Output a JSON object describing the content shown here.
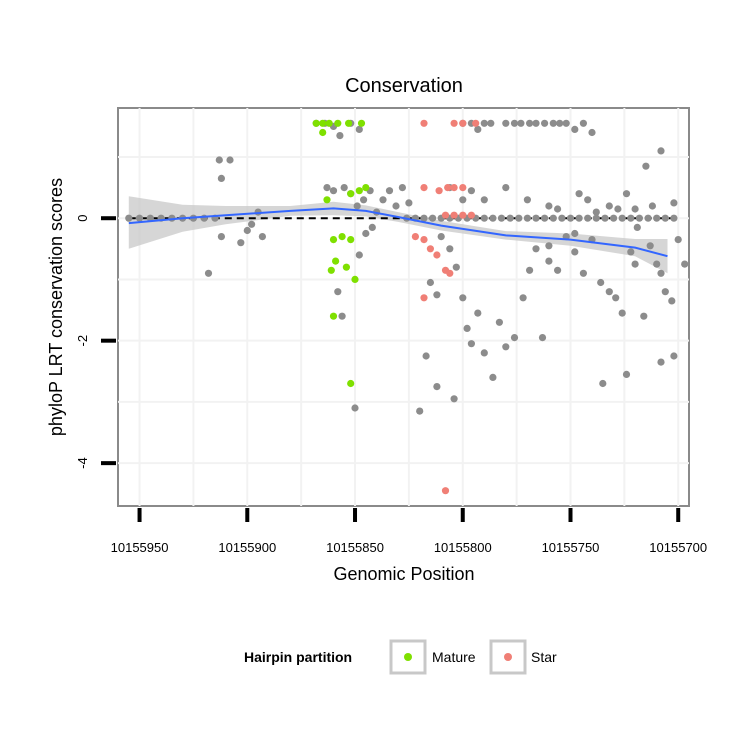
{
  "chart_data": {
    "type": "scatter",
    "title": "Conservation",
    "xlabel": "Genomic Position",
    "ylabel": "phyloP LRT conservation scores",
    "x_reversed": true,
    "xlim": [
      10155960,
      10155695
    ],
    "ylim": [
      -4.7,
      1.8
    ],
    "x_ticks": [
      10155950,
      10155900,
      10155850,
      10155800,
      10155750,
      10155700
    ],
    "x_tick_labels": [
      "10155950",
      "10155900",
      "10155850",
      "10155800",
      "10155750",
      "10155700"
    ],
    "y_ticks": [
      0,
      -2,
      -4
    ],
    "y_tick_labels": [
      "0",
      "-2",
      "-4"
    ],
    "reference_line": {
      "y": 0,
      "style": "dashed"
    },
    "grid": true,
    "legend": {
      "title": "Hairpin partition",
      "position": "bottom",
      "entries": [
        {
          "label": "Mature",
          "color": "#7fe000"
        },
        {
          "label": "Star",
          "color": "#f07f76"
        }
      ]
    },
    "colors": {
      "Other": "#8c8c8c",
      "Mature": "#7fe000",
      "Star": "#f07f76",
      "smooth": "#3366ff",
      "ribbon": "#c8c8c8"
    },
    "series": [
      {
        "name": "",
        "color_key": "Other",
        "points": [
          [
            10155955,
            0
          ],
          [
            10155950,
            0
          ],
          [
            10155945,
            0
          ],
          [
            10155940,
            0
          ],
          [
            10155935,
            0
          ],
          [
            10155930,
            0
          ],
          [
            10155925,
            0
          ],
          [
            10155920,
            0
          ],
          [
            10155915,
            0
          ],
          [
            10155913,
            0.95
          ],
          [
            10155908,
            0.95
          ],
          [
            10155912,
            0.65
          ],
          [
            10155918,
            -0.9
          ],
          [
            10155912,
            -0.3
          ],
          [
            10155903,
            -0.4
          ],
          [
            10155900,
            -0.2
          ],
          [
            10155898,
            -0.1
          ],
          [
            10155895,
            0.1
          ],
          [
            10155893,
            -0.3
          ],
          [
            10155868,
            1.55
          ],
          [
            10155864,
            1.55
          ],
          [
            10155860,
            1.5
          ],
          [
            10155857,
            1.35
          ],
          [
            10155852,
            1.55
          ],
          [
            10155848,
            1.45
          ],
          [
            10155863,
            0.5
          ],
          [
            10155860,
            0.45
          ],
          [
            10155855,
            0.5
          ],
          [
            10155852,
            0.4
          ],
          [
            10155849,
            0.2
          ],
          [
            10155846,
            0.3
          ],
          [
            10155843,
            0.45
          ],
          [
            10155840,
            0.1
          ],
          [
            10155837,
            0.3
          ],
          [
            10155834,
            0.45
          ],
          [
            10155831,
            0.2
          ],
          [
            10155828,
            0.5
          ],
          [
            10155825,
            0.25
          ],
          [
            10155858,
            -1.2
          ],
          [
            10155856,
            -1.6
          ],
          [
            10155850,
            -3.1
          ],
          [
            10155848,
            -0.6
          ],
          [
            10155845,
            -0.25
          ],
          [
            10155842,
            -0.15
          ],
          [
            10155826,
            0
          ],
          [
            10155822,
            0
          ],
          [
            10155818,
            0
          ],
          [
            10155814,
            0
          ],
          [
            10155810,
            0
          ],
          [
            10155806,
            0
          ],
          [
            10155802,
            0
          ],
          [
            10155798,
            0
          ],
          [
            10155794,
            0
          ],
          [
            10155790,
            0
          ],
          [
            10155786,
            0
          ],
          [
            10155782,
            0
          ],
          [
            10155778,
            0
          ],
          [
            10155774,
            0
          ],
          [
            10155770,
            0
          ],
          [
            10155766,
            0
          ],
          [
            10155762,
            0
          ],
          [
            10155758,
            0
          ],
          [
            10155754,
            0
          ],
          [
            10155750,
            0
          ],
          [
            10155746,
            0
          ],
          [
            10155742,
            0
          ],
          [
            10155738,
            0
          ],
          [
            10155734,
            0
          ],
          [
            10155730,
            0
          ],
          [
            10155726,
            0
          ],
          [
            10155722,
            0
          ],
          [
            10155718,
            0
          ],
          [
            10155714,
            0
          ],
          [
            10155710,
            0
          ],
          [
            10155706,
            0
          ],
          [
            10155702,
            0
          ],
          [
            10155800,
            1.55
          ],
          [
            10155796,
            1.55
          ],
          [
            10155793,
            1.45
          ],
          [
            10155790,
            1.55
          ],
          [
            10155787,
            1.55
          ],
          [
            10155780,
            1.55
          ],
          [
            10155776,
            1.55
          ],
          [
            10155773,
            1.55
          ],
          [
            10155769,
            1.55
          ],
          [
            10155766,
            1.55
          ],
          [
            10155762,
            1.55
          ],
          [
            10155758,
            1.55
          ],
          [
            10155755,
            1.55
          ],
          [
            10155752,
            1.55
          ],
          [
            10155748,
            1.45
          ],
          [
            10155744,
            1.55
          ],
          [
            10155740,
            1.4
          ],
          [
            10155806,
            0.5
          ],
          [
            10155800,
            0.3
          ],
          [
            10155796,
            0.45
          ],
          [
            10155790,
            0.3
          ],
          [
            10155780,
            0.5
          ],
          [
            10155770,
            0.3
          ],
          [
            10155760,
            0.2
          ],
          [
            10155756,
            0.15
          ],
          [
            10155746,
            0.4
          ],
          [
            10155742,
            0.3
          ],
          [
            10155738,
            0.1
          ],
          [
            10155732,
            0.2
          ],
          [
            10155728,
            0.15
          ],
          [
            10155724,
            0.4
          ],
          [
            10155720,
            0.15
          ],
          [
            10155715,
            0.85
          ],
          [
            10155712,
            0.2
          ],
          [
            10155708,
            1.1
          ],
          [
            10155702,
            0.25
          ],
          [
            10155810,
            -0.3
          ],
          [
            10155806,
            -0.5
          ],
          [
            10155803,
            -0.8
          ],
          [
            10155800,
            -1.3
          ],
          [
            10155798,
            -1.8
          ],
          [
            10155796,
            -2.05
          ],
          [
            10155793,
            -1.55
          ],
          [
            10155790,
            -2.2
          ],
          [
            10155786,
            -2.6
          ],
          [
            10155783,
            -1.7
          ],
          [
            10155780,
            -2.1
          ],
          [
            10155776,
            -1.95
          ],
          [
            10155772,
            -1.3
          ],
          [
            10155769,
            -0.85
          ],
          [
            10155766,
            -0.5
          ],
          [
            10155763,
            -1.95
          ],
          [
            10155760,
            -0.7
          ],
          [
            10155756,
            -0.85
          ],
          [
            10155752,
            -0.3
          ],
          [
            10155748,
            -0.55
          ],
          [
            10155744,
            -0.9
          ],
          [
            10155740,
            -0.35
          ],
          [
            10155736,
            -1.05
          ],
          [
            10155732,
            -1.2
          ],
          [
            10155729,
            -1.3
          ],
          [
            10155726,
            -1.55
          ],
          [
            10155722,
            -0.55
          ],
          [
            10155719,
            -0.15
          ],
          [
            10155716,
            -1.6
          ],
          [
            10155713,
            -0.45
          ],
          [
            10155710,
            -0.75
          ],
          [
            10155708,
            -0.9
          ],
          [
            10155706,
            -1.2
          ],
          [
            10155703,
            -1.35
          ],
          [
            10155700,
            -0.35
          ],
          [
            10155697,
            -0.75
          ],
          [
            10155820,
            -3.15
          ],
          [
            10155812,
            -2.75
          ],
          [
            10155804,
            -2.95
          ],
          [
            10155812,
            -1.25
          ],
          [
            10155815,
            -1.05
          ],
          [
            10155817,
            -2.25
          ],
          [
            10155708,
            -2.35
          ],
          [
            10155702,
            -2.25
          ],
          [
            10155735,
            -2.7
          ],
          [
            10155724,
            -2.55
          ],
          [
            10155760,
            -0.45
          ],
          [
            10155748,
            -0.25
          ],
          [
            10155720,
            -0.75
          ]
        ]
      },
      {
        "name": "Mature",
        "color_key": "Mature",
        "points": [
          [
            10155868,
            1.55
          ],
          [
            10155865,
            1.55
          ],
          [
            10155862,
            1.55
          ],
          [
            10155858,
            1.55
          ],
          [
            10155853,
            1.55
          ],
          [
            10155847,
            1.55
          ],
          [
            10155865,
            1.4
          ],
          [
            10155863,
            0.3
          ],
          [
            10155852,
            0.4
          ],
          [
            10155848,
            0.45
          ],
          [
            10155845,
            0.5
          ],
          [
            10155860,
            -0.35
          ],
          [
            10155856,
            -0.3
          ],
          [
            10155852,
            -0.35
          ],
          [
            10155861,
            -0.85
          ],
          [
            10155859,
            -0.7
          ],
          [
            10155854,
            -0.8
          ],
          [
            10155850,
            -1.0
          ],
          [
            10155860,
            -1.6
          ],
          [
            10155852,
            -2.7
          ]
        ]
      },
      {
        "name": "Star",
        "color_key": "Star",
        "points": [
          [
            10155818,
            1.55
          ],
          [
            10155804,
            1.55
          ],
          [
            10155800,
            1.55
          ],
          [
            10155794,
            1.55
          ],
          [
            10155818,
            0.5
          ],
          [
            10155811,
            0.45
          ],
          [
            10155807,
            0.5
          ],
          [
            10155804,
            0.5
          ],
          [
            10155800,
            0.5
          ],
          [
            10155808,
            0.05
          ],
          [
            10155804,
            0.05
          ],
          [
            10155800,
            0.05
          ],
          [
            10155796,
            0.05
          ],
          [
            10155822,
            -0.3
          ],
          [
            10155818,
            -0.35
          ],
          [
            10155815,
            -0.5
          ],
          [
            10155812,
            -0.6
          ],
          [
            10155808,
            -0.85
          ],
          [
            10155806,
            -0.9
          ],
          [
            10155818,
            -1.3
          ],
          [
            10155808,
            -4.45
          ]
        ]
      }
    ],
    "smooth_line": {
      "x": [
        10155955,
        10155930,
        10155910,
        10155880,
        10155860,
        10155845,
        10155830,
        10155810,
        10155780,
        10155750,
        10155720,
        10155705
      ],
      "y": [
        -0.08,
        0.0,
        0.05,
        0.12,
        0.16,
        0.12,
        0.02,
        -0.12,
        -0.28,
        -0.35,
        -0.48,
        -0.62
      ],
      "lower": [
        -0.5,
        -0.22,
        -0.1,
        0.04,
        0.05,
        0.03,
        -0.06,
        -0.2,
        -0.35,
        -0.45,
        -0.62,
        -0.9
      ],
      "upper": [
        0.36,
        0.22,
        0.2,
        0.2,
        0.27,
        0.21,
        0.1,
        -0.04,
        -0.21,
        -0.25,
        -0.34,
        -0.34
      ]
    }
  }
}
